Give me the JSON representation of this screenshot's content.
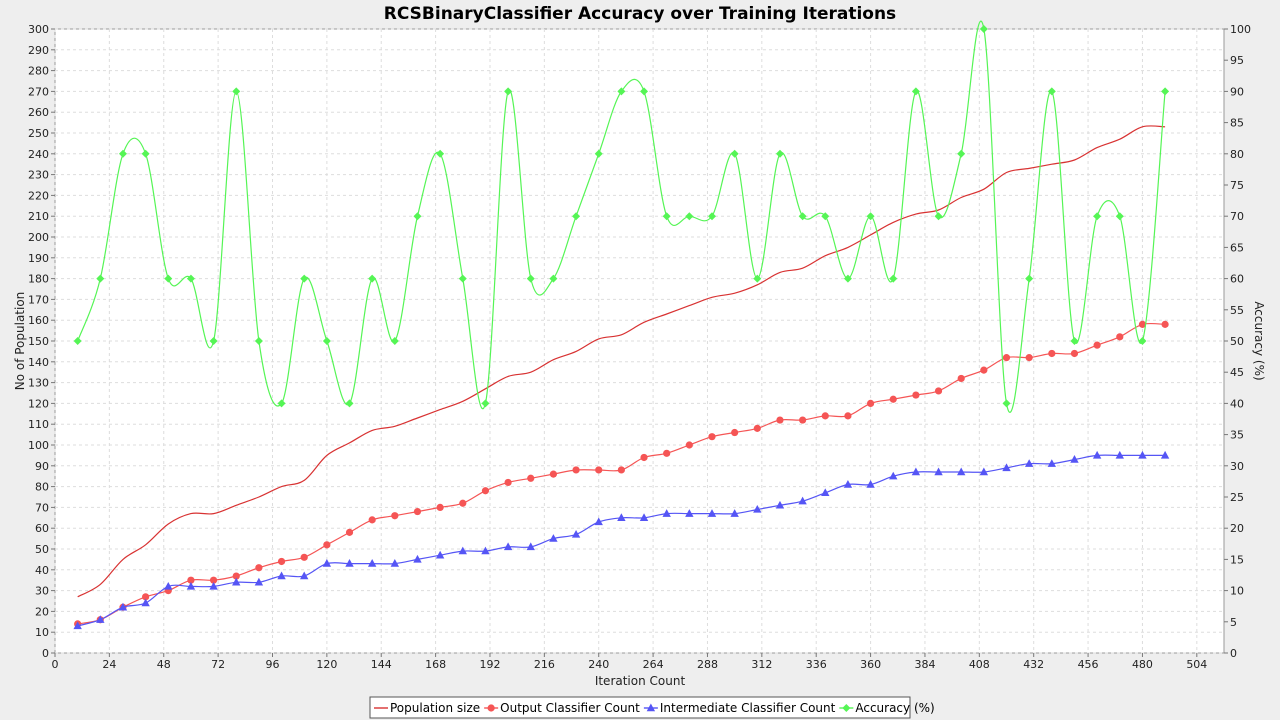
{
  "chart_data": {
    "type": "line",
    "title": "RCSBinaryClassifier Accuracy over Training Iterations",
    "xlabel": "Iteration Count",
    "ylabel": "No of Population",
    "ylabel_right": "Accuracy (%)",
    "xlim": [
      0,
      516
    ],
    "ylim": [
      0,
      300
    ],
    "ylim_right": [
      0,
      100
    ],
    "x_ticks": [
      0,
      24,
      48,
      72,
      96,
      120,
      144,
      168,
      192,
      216,
      240,
      264,
      288,
      312,
      336,
      360,
      384,
      408,
      432,
      456,
      480,
      504
    ],
    "y_ticks": [
      0,
      10,
      20,
      30,
      40,
      50,
      60,
      70,
      80,
      90,
      100,
      110,
      120,
      130,
      140,
      150,
      160,
      170,
      180,
      190,
      200,
      210,
      220,
      230,
      240,
      250,
      260,
      270,
      280,
      290,
      300
    ],
    "y_ticks_right": [
      0,
      5,
      10,
      15,
      20,
      25,
      30,
      35,
      40,
      45,
      50,
      55,
      60,
      65,
      70,
      75,
      80,
      85,
      90,
      95,
      100
    ],
    "grid": true,
    "legend_position": "bottom",
    "x": [
      10,
      20,
      30,
      40,
      50,
      60,
      70,
      80,
      90,
      100,
      110,
      120,
      130,
      140,
      150,
      160,
      170,
      180,
      190,
      200,
      210,
      220,
      230,
      240,
      250,
      260,
      270,
      280,
      290,
      300,
      310,
      320,
      330,
      340,
      350,
      360,
      370,
      380,
      390,
      400,
      410,
      420,
      430,
      440,
      450,
      460,
      470,
      480,
      490
    ],
    "series": [
      {
        "name": "Population size",
        "axis": "left",
        "color": "#d83232",
        "marker": "none",
        "values": [
          27,
          33,
          45,
          52,
          62,
          67,
          67,
          71,
          75,
          80,
          83,
          95,
          101,
          107,
          109,
          113,
          117,
          121,
          127,
          133,
          135,
          141,
          145,
          151,
          153,
          159,
          163,
          167,
          171,
          173,
          177,
          183,
          185,
          191,
          195,
          201,
          207,
          211,
          213,
          219,
          223,
          231,
          233,
          235,
          237,
          243,
          247,
          253,
          253
        ]
      },
      {
        "name": "Output Classifier Count",
        "axis": "left",
        "color": "#f55555",
        "marker": "circle",
        "values": [
          14,
          16,
          22,
          27,
          30,
          35,
          35,
          37,
          41,
          44,
          46,
          52,
          58,
          64,
          66,
          68,
          70,
          72,
          78,
          82,
          84,
          86,
          88,
          88,
          88,
          94,
          96,
          100,
          104,
          106,
          108,
          112,
          112,
          114,
          114,
          120,
          122,
          124,
          126,
          132,
          136,
          142,
          142,
          144,
          144,
          148,
          152,
          158,
          158
        ]
      },
      {
        "name": "Intermediate Classifier Count",
        "axis": "left",
        "color": "#5555f5",
        "marker": "triangle",
        "values": [
          13,
          16,
          22,
          24,
          32,
          32,
          32,
          34,
          34,
          37,
          37,
          43,
          43,
          43,
          43,
          45,
          47,
          49,
          49,
          51,
          51,
          55,
          57,
          63,
          65,
          65,
          67,
          67,
          67,
          67,
          69,
          71,
          73,
          77,
          81,
          81,
          85,
          87,
          87,
          87,
          87,
          89,
          91,
          91,
          93,
          95,
          95,
          95,
          95
        ]
      },
      {
        "name": "Accuracy (%)",
        "axis": "right",
        "color": "#55f555",
        "marker": "diamond",
        "values": [
          50,
          60,
          80,
          80,
          60,
          60,
          50,
          90,
          50,
          40,
          60,
          50,
          40,
          60,
          50,
          70,
          80,
          60,
          40,
          90,
          60,
          60,
          70,
          80,
          90,
          90,
          70,
          70,
          70,
          80,
          60,
          80,
          70,
          70,
          60,
          70,
          60,
          90,
          70,
          80,
          100,
          40,
          60,
          90,
          50,
          70,
          70,
          50,
          90
        ]
      }
    ]
  }
}
